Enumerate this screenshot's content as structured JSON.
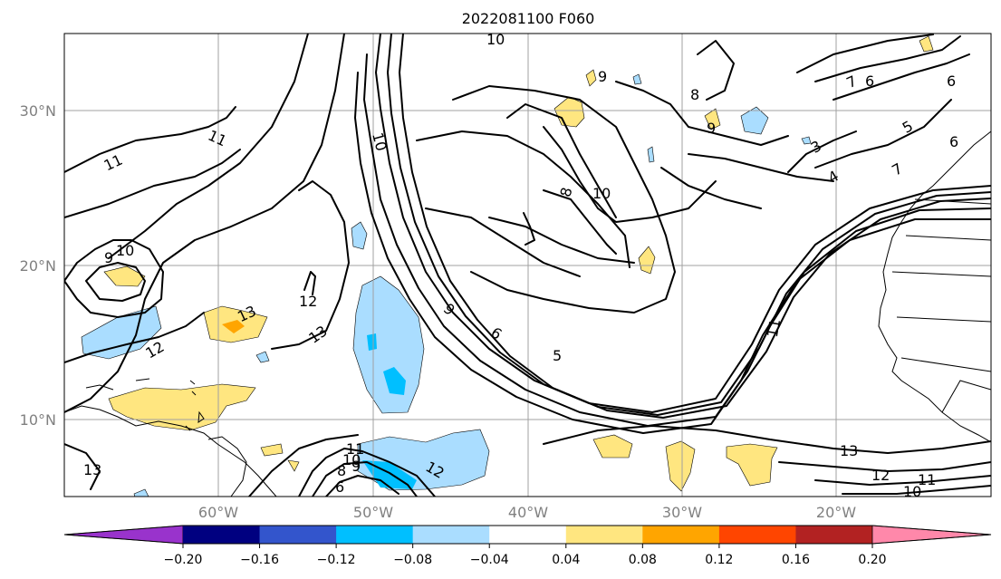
{
  "title": "2022081100 F060",
  "lat_ticks": [
    "30°N",
    "20°N",
    "10°N"
  ],
  "lon_ticks": [
    "60°W",
    "50°W",
    "40°W",
    "30°W",
    "20°W"
  ],
  "colorbar": {
    "ticks": [
      "−0.20",
      "−0.16",
      "−0.12",
      "−0.08",
      "−0.04",
      "0.04",
      "0.08",
      "0.12",
      "0.16",
      "0.20"
    ],
    "colors": [
      "#9933cc",
      "#000080",
      "#3355cc",
      "#00bfff",
      "#aaddff",
      "#ffffff",
      "#ffe680",
      "#ffa500",
      "#ff4500",
      "#b22222",
      "#ff88aa"
    ]
  },
  "contour_labels": [
    "10",
    "11",
    "11",
    "9",
    "10",
    "10",
    "12",
    "13",
    "13",
    "12",
    "9",
    "8",
    "10",
    "9",
    "6",
    "5",
    "11",
    "13",
    "12",
    "11",
    "10",
    "7",
    "6",
    "6",
    "3",
    "4",
    "5",
    "6",
    "8",
    "9",
    "7",
    "11",
    "10",
    "9",
    "8",
    "6",
    "12",
    "13"
  ]
}
